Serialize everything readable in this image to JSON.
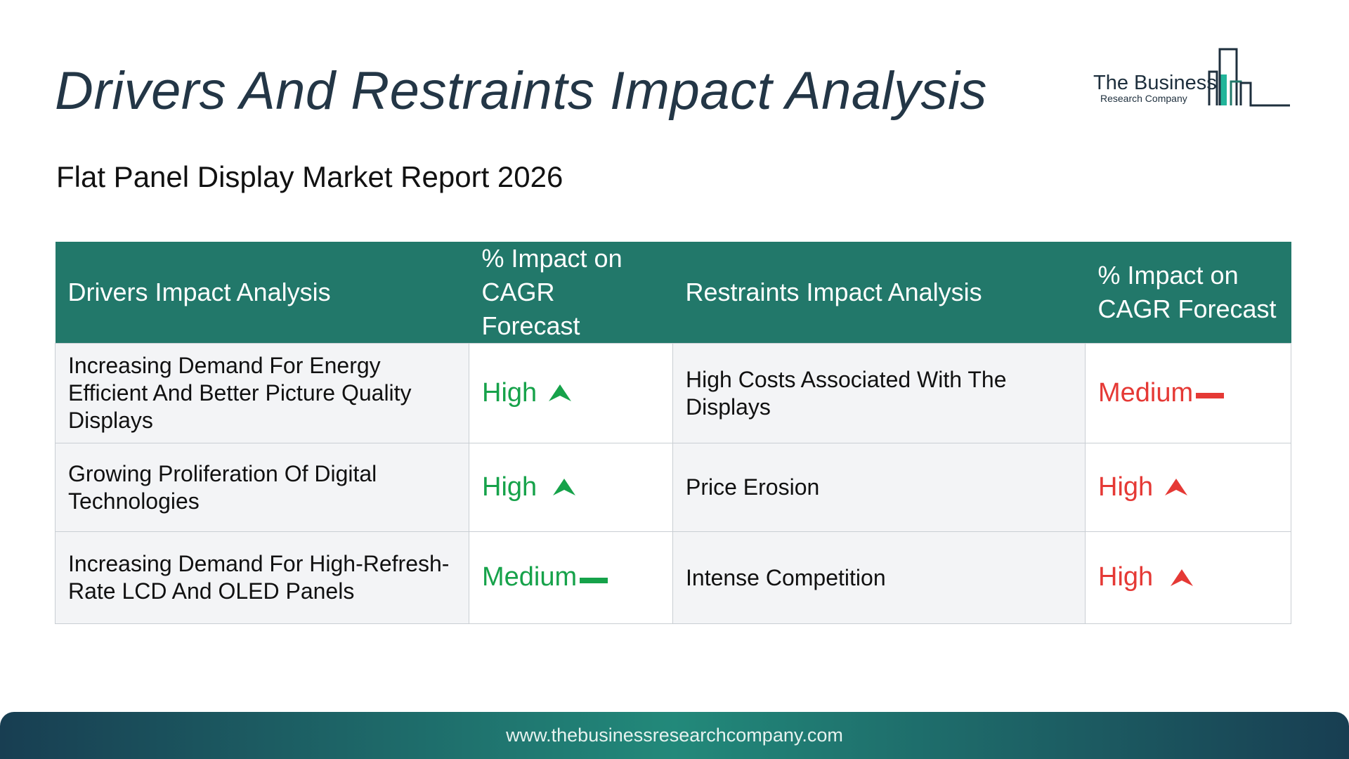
{
  "header": {
    "title": "Drivers And Restraints Impact Analysis",
    "subtitle": "Flat Panel Display Market Report 2026"
  },
  "logo": {
    "line1": "The Business",
    "line2": "Research Company",
    "icon": "bar-chart-buildings-icon",
    "color": "#22786a"
  },
  "table": {
    "headers": {
      "drivers": "Drivers Impact Analysis",
      "drivers_impact": "% Impact on CAGR Forecast",
      "restraints": "Restraints Impact Analysis",
      "restraints_impact": "% Impact on CAGR Forecast"
    },
    "rows": [
      {
        "driver": "Increasing Demand For Energy Efficient And Better Picture Quality Displays",
        "driver_impact": "High",
        "driver_trend": "up-arrow-icon",
        "restraint": "High Costs Associated With The Displays",
        "restraint_impact": "Medium",
        "restraint_trend": "dash-icon"
      },
      {
        "driver": "Growing Proliferation Of Digital Technologies",
        "driver_impact": "High",
        "driver_trend": "up-arrow-icon",
        "restraint": "Price Erosion",
        "restraint_impact": "High",
        "restraint_trend": "up-arrow-icon"
      },
      {
        "driver": "Increasing Demand For High-Refresh-Rate LCD And OLED Panels",
        "driver_impact": "Medium",
        "driver_trend": "dash-icon",
        "restraint": "Intense Competition",
        "restraint_impact": "High",
        "restraint_trend": "up-arrow-icon"
      }
    ]
  },
  "colors": {
    "header_bg": "#22786a",
    "driver_level": "#16a24a",
    "restraint_level": "#e53935",
    "title": "#233646"
  },
  "footer": {
    "url": "www.thebusinessresearchcompany.com"
  }
}
